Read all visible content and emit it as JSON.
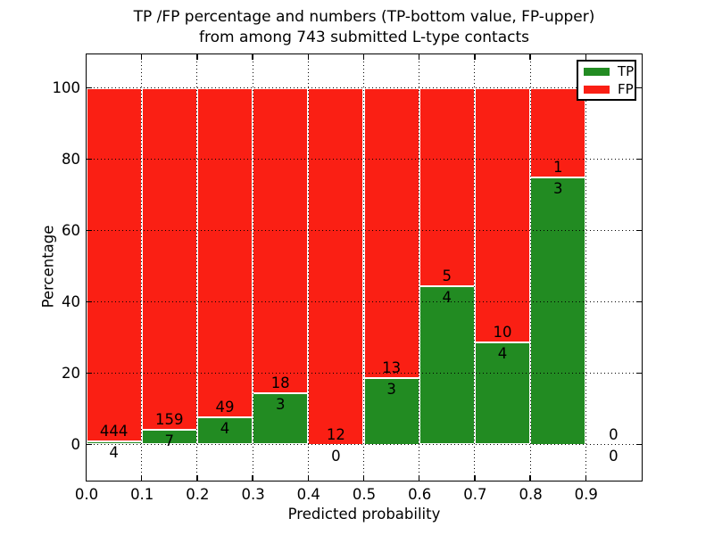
{
  "title": {
    "line1": "TP /FP percentage and numbers (TP-bottom value, FP-upper)",
    "line2": "from among 743 submitted L-type contacts"
  },
  "colors": {
    "tp_green": "#228b22",
    "fp_red": "#fa1f14",
    "grid": "#000000",
    "bar_edge": "#ffffff",
    "text": "#000000",
    "background": "#ffffff"
  },
  "chart_data": {
    "type": "bar",
    "stacked": true,
    "title": "TP /FP percentage and numbers (TP-bottom value, FP-upper) from among 743 submitted L-type contacts",
    "title_lines": [
      "TP /FP percentage and numbers (TP-bottom value, FP-upper)",
      "from among 743 submitted L-type contacts"
    ],
    "xlabel": "Predicted probability",
    "ylabel": "Percentage",
    "xlim": [
      0.0,
      1.0
    ],
    "ylim": [
      -10,
      109.5
    ],
    "xticks": [
      0.0,
      0.1,
      0.2,
      0.3,
      0.4,
      0.5,
      0.6,
      0.7,
      0.8,
      0.9
    ],
    "xtick_labels": [
      "0.0",
      "0.1",
      "0.2",
      "0.3",
      "0.4",
      "0.5",
      "0.6",
      "0.7",
      "0.8",
      "0.9"
    ],
    "yticks": [
      0,
      20,
      40,
      60,
      80,
      100
    ],
    "grid": {
      "style": "dotted",
      "color": "#000000",
      "above_bars": true
    },
    "legend": {
      "position": "upper-right",
      "entries": [
        {
          "label": "TP",
          "color": "#228b22"
        },
        {
          "label": "FP",
          "color": "#fa1f14"
        }
      ]
    },
    "note": "Each bar stacks TP (green, bottom) and FP (red, top) to 100%. Labels show raw counts: FP above the TP/FP boundary, TP below it.",
    "bins": [
      {
        "range": [
          0.0,
          0.1
        ],
        "tp": 4,
        "fp": 444,
        "tp_pct": 0.89
      },
      {
        "range": [
          0.1,
          0.2
        ],
        "tp": 7,
        "fp": 159,
        "tp_pct": 4.22
      },
      {
        "range": [
          0.2,
          0.3
        ],
        "tp": 4,
        "fp": 49,
        "tp_pct": 7.55
      },
      {
        "range": [
          0.3,
          0.4
        ],
        "tp": 3,
        "fp": 18,
        "tp_pct": 14.29
      },
      {
        "range": [
          0.4,
          0.5
        ],
        "tp": 0,
        "fp": 12,
        "tp_pct": 0.0
      },
      {
        "range": [
          0.5,
          0.6
        ],
        "tp": 3,
        "fp": 13,
        "tp_pct": 18.75
      },
      {
        "range": [
          0.6,
          0.7
        ],
        "tp": 4,
        "fp": 5,
        "tp_pct": 44.44
      },
      {
        "range": [
          0.7,
          0.8
        ],
        "tp": 4,
        "fp": 10,
        "tp_pct": 28.57
      },
      {
        "range": [
          0.8,
          0.9
        ],
        "tp": 3,
        "fp": 1,
        "tp_pct": 75.0
      },
      {
        "range": [
          0.9,
          1.0
        ],
        "tp": 0,
        "fp": 0,
        "tp_pct": null
      }
    ]
  }
}
